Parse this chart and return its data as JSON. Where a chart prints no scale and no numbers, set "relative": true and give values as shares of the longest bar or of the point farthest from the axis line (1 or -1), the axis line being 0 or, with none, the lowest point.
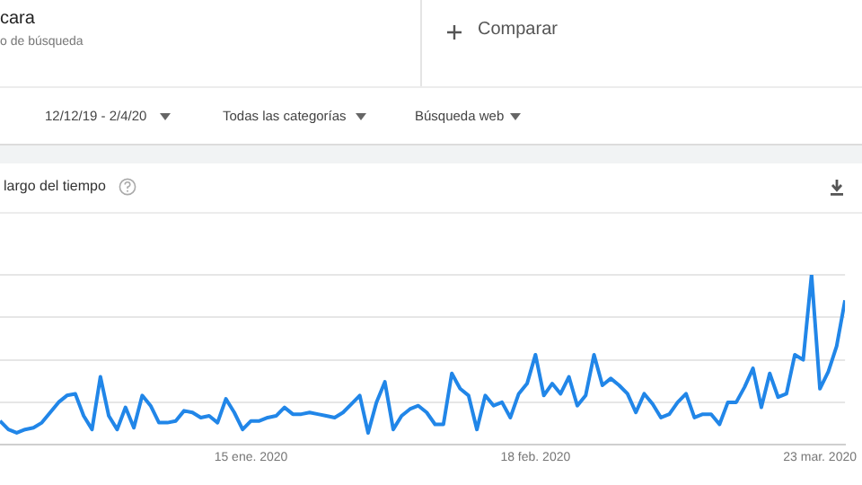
{
  "chart_data": {
    "type": "line",
    "title": "largo del tiempo",
    "annotations": [
      "cara",
      "o de búsqueda",
      "Comparar",
      "12/12/19 - 2/4/20",
      "Todas las categorías",
      "Búsqueda web"
    ],
    "relative": true,
    "grid": "y",
    "legend": false,
    "marker": "none",
    "line_style": "solid",
    "xlim": [
      "2019-12-16",
      "2020-03-26"
    ],
    "xticks": [
      {
        "value": "2020-01-15",
        "label": "15 ene. 2020"
      },
      {
        "value": "2020-02-18",
        "label": "18 feb. 2020"
      },
      {
        "value": "2020-03-23",
        "label": "23 mar. 2020"
      }
    ],
    "x": [
      "2019-12-16",
      "2019-12-17",
      "2019-12-18",
      "2019-12-19",
      "2019-12-20",
      "2019-12-21",
      "2019-12-22",
      "2019-12-23",
      "2019-12-24",
      "2019-12-25",
      "2019-12-26",
      "2019-12-27",
      "2019-12-28",
      "2019-12-29",
      "2019-12-30",
      "2019-12-31",
      "2020-01-01",
      "2020-01-02",
      "2020-01-03",
      "2020-01-04",
      "2020-01-05",
      "2020-01-06",
      "2020-01-07",
      "2020-01-08",
      "2020-01-09",
      "2020-01-10",
      "2020-01-11",
      "2020-01-12",
      "2020-01-13",
      "2020-01-14",
      "2020-01-15",
      "2020-01-16",
      "2020-01-17",
      "2020-01-18",
      "2020-01-19",
      "2020-01-20",
      "2020-01-21",
      "2020-01-22",
      "2020-01-23",
      "2020-01-24",
      "2020-01-25",
      "2020-01-26",
      "2020-01-27",
      "2020-01-28",
      "2020-01-29",
      "2020-01-30",
      "2020-01-31",
      "2020-02-01",
      "2020-02-02",
      "2020-02-03",
      "2020-02-04",
      "2020-02-05",
      "2020-02-06",
      "2020-02-07",
      "2020-02-08",
      "2020-02-09",
      "2020-02-10",
      "2020-02-11",
      "2020-02-12",
      "2020-02-13",
      "2020-02-14",
      "2020-02-15",
      "2020-02-16",
      "2020-02-17",
      "2020-02-18",
      "2020-02-19",
      "2020-02-20",
      "2020-02-21",
      "2020-02-22",
      "2020-02-23",
      "2020-02-24",
      "2020-02-25",
      "2020-02-26",
      "2020-02-27",
      "2020-02-28",
      "2020-02-29",
      "2020-03-01",
      "2020-03-02",
      "2020-03-03",
      "2020-03-04",
      "2020-03-05",
      "2020-03-06",
      "2020-03-07",
      "2020-03-08",
      "2020-03-09",
      "2020-03-10",
      "2020-03-11",
      "2020-03-12",
      "2020-03-13",
      "2020-03-14",
      "2020-03-15",
      "2020-03-16",
      "2020-03-17",
      "2020-03-18",
      "2020-03-19",
      "2020-03-20",
      "2020-03-21",
      "2020-03-22",
      "2020-03-23",
      "2020-03-24",
      "2020-03-25",
      "2020-03-26"
    ],
    "series": [
      {
        "color": "#2186e8",
        "values": [
          0.14,
          0.09,
          0.07,
          0.09,
          0.1,
          0.13,
          0.19,
          0.25,
          0.29,
          0.3,
          0.17,
          0.09,
          0.4,
          0.17,
          0.09,
          0.22,
          0.1,
          0.29,
          0.23,
          0.13,
          0.13,
          0.14,
          0.2,
          0.19,
          0.16,
          0.17,
          0.13,
          0.27,
          0.19,
          0.09,
          0.14,
          0.14,
          0.16,
          0.17,
          0.22,
          0.18,
          0.18,
          0.19,
          0.18,
          0.17,
          0.16,
          0.19,
          0.24,
          0.29,
          0.07,
          0.25,
          0.37,
          0.09,
          0.17,
          0.21,
          0.23,
          0.19,
          0.12,
          0.12,
          0.42,
          0.33,
          0.29,
          0.09,
          0.29,
          0.23,
          0.25,
          0.16,
          0.3,
          0.36,
          0.53,
          0.29,
          0.36,
          0.3,
          0.4,
          0.23,
          0.29,
          0.53,
          0.35,
          0.39,
          0.35,
          0.3,
          0.19,
          0.3,
          0.24,
          0.16,
          0.18,
          0.25,
          0.3,
          0.16,
          0.18,
          0.18,
          0.12,
          0.25,
          0.25,
          0.34,
          0.45,
          0.22,
          0.42,
          0.28,
          0.3,
          0.53,
          0.5,
          1,
          0.33,
          0.43,
          0.58,
          0.85
        ]
      }
    ]
  }
}
